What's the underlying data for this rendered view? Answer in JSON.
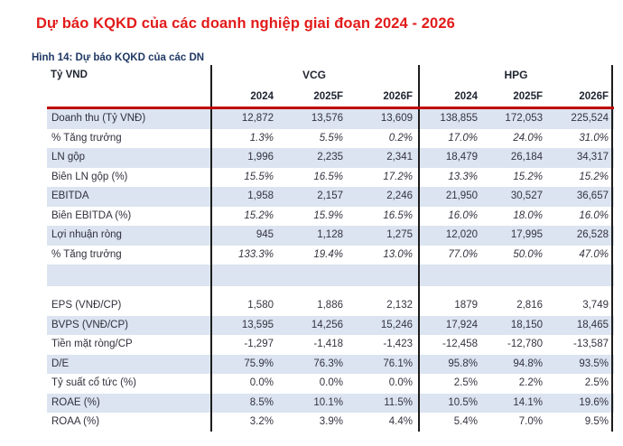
{
  "title": {
    "text": "Dự báo KQKD của các doanh nghiệp giai đoạn 2024 - 2026",
    "color": "#e21b1b"
  },
  "figure": {
    "caption": "Hình 14: Dự báo KQKD của các DN",
    "color": "#1f3864"
  },
  "table": {
    "unit_label": "Tỷ VND",
    "groups": [
      {
        "name": "VCG",
        "years": [
          "2024",
          "2025F",
          "2026F"
        ]
      },
      {
        "name": "HPG",
        "years": [
          "2024",
          "2025F",
          "2026F"
        ]
      }
    ],
    "style": {
      "shade": "#dbe4f0",
      "rule": "#c00000",
      "divider": "#1c1c1c"
    },
    "rows": [
      {
        "label": "Doanh thu (Tỷ VNĐ)",
        "values": [
          "12,872",
          "13,576",
          "13,609",
          "138,855",
          "172,053",
          "225,524"
        ],
        "shaded": true
      },
      {
        "label": "% Tăng trưởng",
        "values": [
          "1.3%",
          "5.5%",
          "0.2%",
          "17.0%",
          "24.0%",
          "31.0%"
        ],
        "italic": true
      },
      {
        "label": "LN gộp",
        "values": [
          "1,996",
          "2,235",
          "2,341",
          "18,479",
          "26,184",
          "34,317"
        ],
        "shaded": true
      },
      {
        "label": "Biên LN gộp (%)",
        "values": [
          "15.5%",
          "16.5%",
          "17.2%",
          "13.3%",
          "15.2%",
          "15.2%"
        ],
        "italic": true
      },
      {
        "label": "EBITDA",
        "values": [
          "1,958",
          "2,157",
          "2,246",
          "21,950",
          "30,527",
          "36,657"
        ],
        "shaded": true
      },
      {
        "label": "Biên EBITDA (%)",
        "values": [
          "15.2%",
          "15.9%",
          "16.5%",
          "16.0%",
          "18.0%",
          "16.0%"
        ],
        "italic": true
      },
      {
        "label": "Lợi nhuận ròng",
        "values": [
          "945",
          "1,128",
          "1,275",
          "12,020",
          "17,995",
          "26,528"
        ],
        "shaded": true
      },
      {
        "label": "% Tăng trưởng",
        "values": [
          "133.3%",
          "19.4%",
          "13.0%",
          "77.0%",
          "50.0%",
          "47.0%"
        ],
        "italic": true
      },
      {
        "type": "spacer",
        "shaded": true,
        "height": 24
      },
      {
        "type": "spacer",
        "shaded": false,
        "height": 11
      },
      {
        "label": "EPS (VNĐ/CP)",
        "values": [
          "1,580",
          "1,886",
          "2,132",
          "1879",
          "2,816",
          "3,749"
        ]
      },
      {
        "label": "BVPS (VNĐ/CP)",
        "values": [
          "13,595",
          "14,256",
          "15,246",
          "17,924",
          "18,150",
          "18,465"
        ],
        "shaded": true
      },
      {
        "label": "Tiền mặt ròng/CP",
        "values": [
          "-1,297",
          "-1,418",
          "-1,423",
          "-12,458",
          "-12,780",
          "-13,587"
        ]
      },
      {
        "label": "D/E",
        "values": [
          "75.9%",
          "76.3%",
          "76.1%",
          "95.8%",
          "94.8%",
          "93.5%"
        ],
        "shaded": true
      },
      {
        "label": "Tỷ suất cổ tức (%)",
        "values": [
          "0.0%",
          "0.0%",
          "0.0%",
          "2.5%",
          "2.2%",
          "2.5%"
        ]
      },
      {
        "label": "ROAE (%)",
        "values": [
          "8.5%",
          "10.1%",
          "11.5%",
          "10.5%",
          "14.1%",
          "19.6%"
        ],
        "shaded": true
      },
      {
        "label": "ROAA (%)",
        "values": [
          "3.2%",
          "3.9%",
          "4.4%",
          "5.4%",
          "7.0%",
          "9.5%"
        ]
      }
    ]
  }
}
